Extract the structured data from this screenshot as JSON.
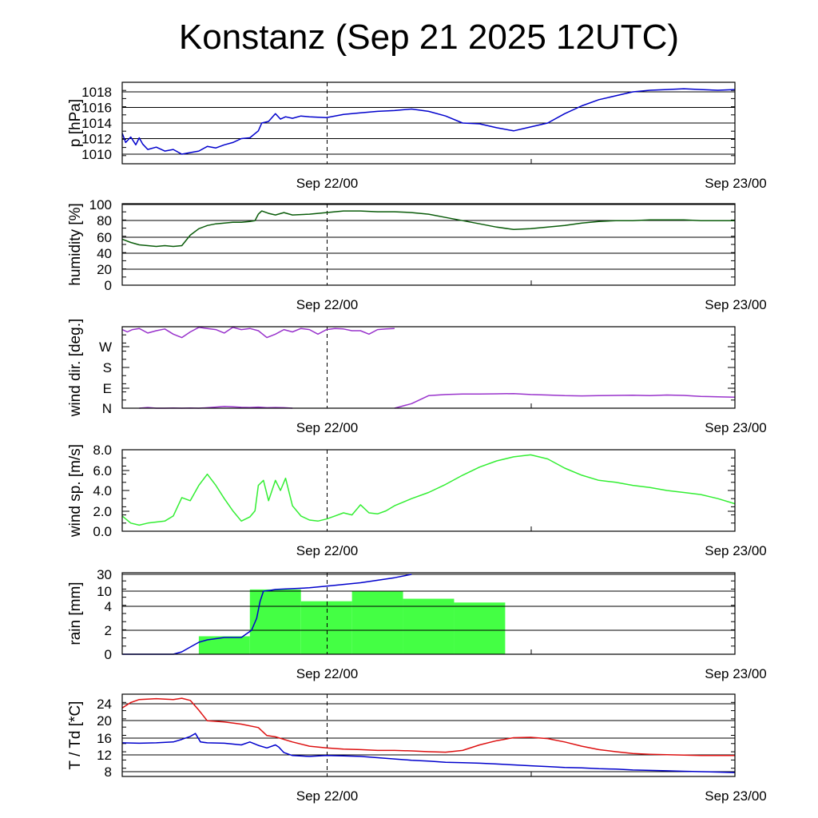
{
  "title": "Konstanz (Sep 21 2025 12UTC)",
  "colors": {
    "pressure": "#0000cc",
    "humidity": "#0a5c0a",
    "wind_dir": "#9933cc",
    "wind_speed": "#33ee33",
    "rain_bar": "#44ff44",
    "rain_cum": "#0000cc",
    "temperature": "#dd1111",
    "dewpoint": "#0000cc"
  },
  "chart_data": [
    {
      "type": "line",
      "ylabel": "p [hPa]",
      "ylim": [
        1009,
        1019
      ],
      "yticks": [
        "1010",
        "1012",
        "1014",
        "1016",
        "1018"
      ],
      "xlim": [
        0,
        36
      ],
      "xticks": [
        "Sep 22/00",
        "Sep 23/00"
      ],
      "series": [
        {
          "x": [
            0,
            0.2,
            0.5,
            0.8,
            1,
            1.2,
            1.5,
            2,
            2.5,
            3,
            3.5,
            4,
            4.5,
            5,
            5.5,
            6,
            6.5,
            7,
            7.5,
            8,
            8.2,
            8.6,
            9,
            9.3,
            9.6,
            10,
            10.5,
            11,
            12,
            13,
            14,
            15,
            16,
            17,
            18,
            19,
            20,
            21,
            22,
            23,
            24,
            25,
            26,
            27,
            28,
            29,
            30,
            31,
            32,
            33,
            34,
            35,
            36
          ],
          "y": [
            1012.7,
            1011.5,
            1012.2,
            1011.2,
            1012.1,
            1011.3,
            1010.6,
            1010.9,
            1010.4,
            1010.6,
            1010.0,
            1010.2,
            1010.4,
            1011.0,
            1010.8,
            1011.2,
            1011.5,
            1012.0,
            1012.1,
            1013.0,
            1014.0,
            1014.2,
            1015.2,
            1014.5,
            1014.8,
            1014.6,
            1014.9,
            1014.8,
            1014.7,
            1015.1,
            1015.3,
            1015.5,
            1015.6,
            1015.8,
            1015.5,
            1014.9,
            1014.0,
            1013.9,
            1013.4,
            1013.0,
            1013.5,
            1014.0,
            1015.2,
            1016.2,
            1017.0,
            1017.5,
            1018.0,
            1018.2,
            1018.3,
            1018.4,
            1018.3,
            1018.2,
            1018.3
          ]
        }
      ]
    },
    {
      "type": "line",
      "ylabel": "humidity [%]",
      "ylim": [
        0,
        100
      ],
      "yticks": [
        "0",
        "20",
        "40",
        "60",
        "80",
        "100"
      ],
      "xlim": [
        0,
        36
      ],
      "xticks": [
        "Sep 22/00",
        "Sep 23/00"
      ],
      "series": [
        {
          "x": [
            0,
            0.5,
            1,
            1.5,
            2,
            2.5,
            3,
            3.5,
            4,
            4.5,
            5,
            5.5,
            6,
            6.5,
            7,
            7.5,
            7.8,
            8,
            8.2,
            8.6,
            9,
            9.5,
            10,
            11,
            12,
            13,
            14,
            15,
            16,
            17,
            18,
            19,
            20,
            21,
            22,
            23,
            24,
            25,
            26,
            27,
            28,
            29,
            30,
            31,
            32,
            33,
            34,
            35,
            36
          ],
          "y": [
            57,
            53,
            50,
            49,
            48,
            49,
            48,
            49,
            62,
            70,
            74,
            76,
            77,
            78,
            78,
            79,
            80,
            88,
            92,
            89,
            87,
            90,
            87,
            88,
            90,
            92,
            92,
            91,
            91,
            90,
            88,
            84,
            80,
            76,
            72,
            69,
            70,
            72,
            74,
            77,
            79,
            80,
            80,
            81,
            81,
            81,
            80,
            80,
            80
          ]
        }
      ]
    },
    {
      "type": "line",
      "ylabel": "wind dir. [deg.]",
      "ylim": [
        0,
        360
      ],
      "yticks": [
        "N",
        "E",
        "S",
        "W"
      ],
      "xlim": [
        0,
        36
      ],
      "xticks": [
        "Sep 22/00",
        "Sep 23/00"
      ],
      "series": [
        {
          "x": [
            0,
            0.3,
            0.6,
            1,
            1.5,
            2,
            2.5,
            3,
            3.5,
            4,
            4.5,
            5,
            5.5,
            6,
            6.5,
            7,
            7.5,
            8,
            8.5,
            9,
            9.5,
            10,
            10.5,
            11,
            11.5,
            12,
            12.5,
            13,
            13.5,
            14,
            14.5,
            15,
            15.5,
            16
          ],
          "y": [
            345,
            335,
            345,
            350,
            330,
            340,
            348,
            325,
            310,
            335,
            355,
            350,
            345,
            330,
            355,
            345,
            350,
            340,
            310,
            325,
            345,
            335,
            350,
            345,
            325,
            345,
            350,
            348,
            340,
            340,
            325,
            345,
            348,
            350
          ]
        },
        {
          "x": [
            1,
            1.5,
            2,
            2.5,
            3,
            3.5,
            4,
            4.5,
            5,
            5.5,
            6,
            6.5,
            7,
            7.5,
            8,
            8.5,
            9,
            9.5,
            10
          ],
          "y": [
            0,
            3,
            0,
            0,
            1,
            0,
            1,
            0,
            2,
            5,
            8,
            6,
            4,
            3,
            5,
            2,
            3,
            2,
            0
          ]
        },
        {
          "x": [
            16,
            17,
            18,
            19,
            20,
            21,
            22,
            23,
            24,
            25,
            26,
            27,
            28,
            29,
            30,
            31,
            32,
            33,
            34,
            35,
            36
          ],
          "y": [
            0,
            20,
            55,
            60,
            62,
            62,
            63,
            64,
            60,
            58,
            55,
            54,
            55,
            56,
            57,
            55,
            58,
            56,
            52,
            50,
            48
          ]
        }
      ]
    },
    {
      "type": "line",
      "ylabel": "wind sp. [m/s]",
      "ylim": [
        0,
        8
      ],
      "yticks": [
        "0.0",
        "2.0",
        "4.0",
        "6.0",
        "8.0"
      ],
      "xlim": [
        0,
        36
      ],
      "xticks": [
        "Sep 22/00",
        "Sep 23/00"
      ],
      "series": [
        {
          "x": [
            0,
            0.5,
            1,
            1.5,
            2,
            2.5,
            3,
            3.5,
            4,
            4.5,
            5,
            5.5,
            6,
            6.5,
            7,
            7.5,
            7.8,
            8,
            8.3,
            8.6,
            9,
            9.3,
            9.6,
            10,
            10.5,
            11,
            11.5,
            12,
            12.5,
            13,
            13.5,
            14,
            14.5,
            15,
            15.5,
            16,
            17,
            18,
            19,
            20,
            21,
            22,
            23,
            24,
            25,
            26,
            27,
            28,
            29,
            30,
            31,
            32,
            33,
            34,
            35,
            36
          ],
          "y": [
            1.5,
            0.8,
            0.6,
            0.8,
            0.9,
            1.0,
            1.5,
            3.3,
            3.0,
            4.5,
            5.6,
            4.5,
            3.2,
            2.0,
            1.0,
            1.4,
            2.0,
            4.5,
            5.0,
            3.0,
            5.0,
            4.0,
            5.2,
            2.5,
            1.5,
            1.1,
            1.0,
            1.2,
            1.5,
            1.8,
            1.6,
            2.6,
            1.8,
            1.7,
            2.0,
            2.5,
            3.2,
            3.8,
            4.6,
            5.5,
            6.3,
            6.9,
            7.3,
            7.5,
            7.1,
            6.2,
            5.5,
            5.0,
            4.8,
            4.5,
            4.3,
            4.0,
            3.8,
            3.6,
            3.2,
            2.7
          ]
        }
      ]
    },
    {
      "type": "bar",
      "ylabel": "rain [mm]",
      "ylim": [
        0,
        30
      ],
      "yticks": [
        "0",
        "2",
        "4",
        "10",
        "30"
      ],
      "xlim": [
        0,
        36
      ],
      "xticks": [
        "Sep 22/00",
        "Sep 23/00"
      ],
      "bars": [
        {
          "x0": 4.5,
          "x1": 7.5,
          "value": 1.5
        },
        {
          "x0": 7.5,
          "x1": 10.5,
          "value": 12
        },
        {
          "x0": 10.5,
          "x1": 13.5,
          "value": 6
        },
        {
          "x0": 13.5,
          "x1": 16.5,
          "value": 10
        },
        {
          "x0": 16.5,
          "x1": 19.5,
          "value": 7
        },
        {
          "x0": 19.5,
          "x1": 22.5,
          "value": 5.5
        }
      ],
      "series": [
        {
          "x": [
            0,
            3,
            3.5,
            4,
            4.5,
            5,
            5.5,
            6,
            7,
            7.6,
            7.9,
            8.1,
            8.3,
            8.7,
            9,
            9.5,
            10,
            11,
            12,
            13,
            14,
            15,
            16,
            17
          ],
          "y": [
            0,
            0,
            0.2,
            0.6,
            1.0,
            1.2,
            1.3,
            1.4,
            1.4,
            2.0,
            3.0,
            6.0,
            10,
            11,
            12,
            12.5,
            13,
            14,
            16,
            18,
            20,
            23,
            26,
            30
          ]
        }
      ]
    },
    {
      "type": "line",
      "ylabel": "T / Td [*C]",
      "ylim": [
        7,
        26
      ],
      "yticks": [
        "8",
        "12",
        "16",
        "20",
        "24"
      ],
      "xlim": [
        0,
        36
      ],
      "xticks": [
        "Sep 22/00",
        "Sep 23/00"
      ],
      "series": [
        {
          "x": [
            0,
            0.5,
            1,
            2,
            3,
            3.5,
            4,
            4.5,
            5,
            6,
            7,
            8,
            8.5,
            9,
            10,
            11,
            12,
            13,
            14,
            15,
            16,
            17,
            18,
            19,
            20,
            21,
            22,
            23,
            24,
            25,
            26,
            27,
            28,
            29,
            30,
            31,
            32,
            33,
            34,
            35,
            36
          ],
          "y": [
            23,
            24.3,
            25,
            25.2,
            25,
            25.3,
            24.8,
            22.5,
            20,
            19.7,
            19.2,
            18.4,
            16.5,
            16.2,
            15,
            14,
            13.6,
            13.3,
            13.2,
            13.0,
            13.0,
            12.9,
            12.7,
            12.6,
            13.0,
            14.3,
            15.3,
            16.0,
            16.1,
            15.8,
            15.0,
            14.0,
            13.2,
            12.7,
            12.3,
            12.1,
            12.0,
            11.9,
            11.8,
            11.8,
            11.8
          ]
        },
        {
          "x": [
            0,
            1,
            2,
            3,
            3.5,
            4,
            4.3,
            4.6,
            5,
            6,
            7,
            7.5,
            8,
            8.5,
            9,
            9.2,
            9.5,
            10,
            11,
            12,
            13,
            14,
            15,
            16,
            17,
            18,
            19,
            20,
            21,
            22,
            23,
            24,
            25,
            26,
            27,
            28,
            29,
            30,
            31,
            32,
            33,
            34,
            35,
            36
          ],
          "y": [
            14.8,
            14.7,
            14.8,
            15.0,
            15.6,
            16.3,
            17.0,
            15.0,
            14.8,
            14.7,
            14.3,
            15.0,
            14.2,
            13.6,
            14.3,
            13.8,
            12.5,
            11.8,
            11.6,
            11.8,
            11.7,
            11.6,
            11.3,
            11.0,
            10.7,
            10.5,
            10.2,
            10.1,
            10.0,
            9.8,
            9.6,
            9.4,
            9.2,
            9.0,
            8.9,
            8.7,
            8.6,
            8.4,
            8.3,
            8.2,
            8.1,
            8.0,
            7.9,
            7.8
          ]
        }
      ]
    }
  ]
}
